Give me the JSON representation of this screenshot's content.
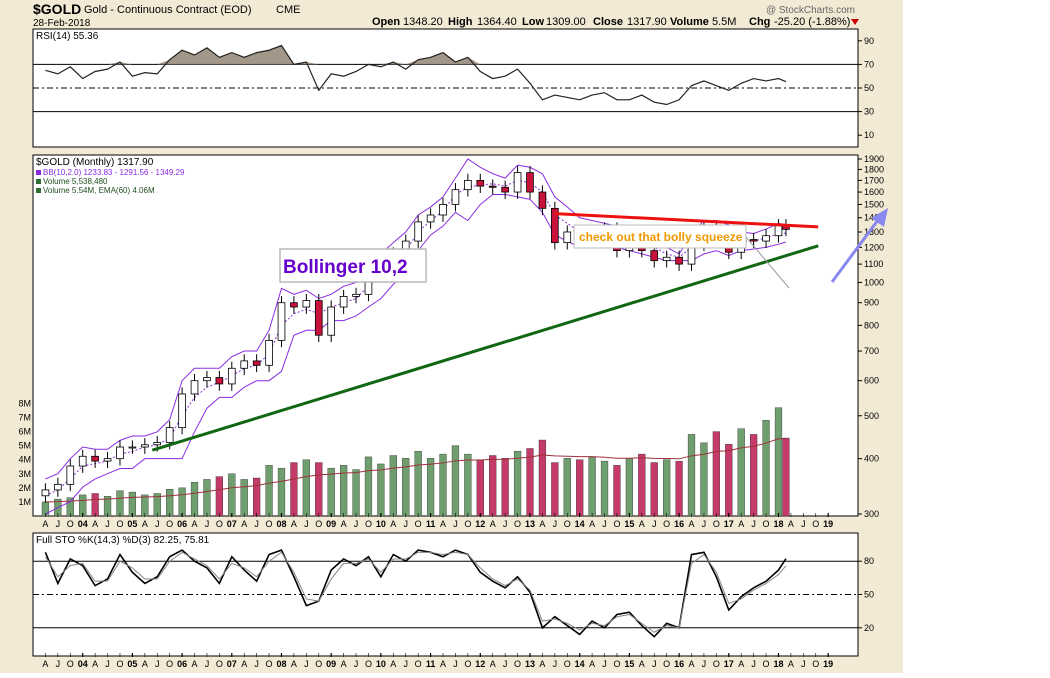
{
  "header": {
    "symbol": "$GOLD",
    "name": "Gold - Continuous Contract (EOD)",
    "exchange": "CME",
    "date": "28-Feb-2018",
    "open_label": "Open",
    "open": "1348.20",
    "high_label": "High",
    "high": "1364.40",
    "low_label": "Low",
    "low": "1309.00",
    "close_label": "Close",
    "close": "1317.90",
    "volume_label": "Volume",
    "volume": "5.5M",
    "chg_label": "Chg",
    "chg": "-25.20 (-1.88%)",
    "watermark": "@ StockCharts.com"
  },
  "colors": {
    "background": "#f2ead5",
    "plot_bg": "#ffffff",
    "up_candle": "#ffffff",
    "down_candle": "#c8123c",
    "bollinger": "#8a2be2",
    "volume_up": "#6f9f6f",
    "volume_down": "#c43a6a",
    "resistance_line": "#ee1111",
    "support_line": "#116611",
    "arrow": "#8888ee",
    "annotation_text": "#ee9900"
  },
  "annotations": {
    "bollinger_label": "Bollinger 10,2",
    "squeeze_label": "check out that bolly squeeze"
  },
  "chart_data": [
    {
      "type": "line",
      "panel": "rsi",
      "label": "RSI(14) 55.36",
      "indicator": "RSI(14)",
      "last_value": 55.36,
      "ylim": [
        0,
        100
      ],
      "y_ticks": [
        10,
        30,
        50,
        70,
        90
      ],
      "reference_lines": [
        30,
        50,
        70
      ],
      "x": [
        2003.25,
        2003.5,
        2003.75,
        2004.0,
        2004.25,
        2004.5,
        2004.75,
        2005.0,
        2005.25,
        2005.5,
        2005.75,
        2006.0,
        2006.25,
        2006.5,
        2006.75,
        2007.0,
        2007.25,
        2007.5,
        2007.75,
        2008.0,
        2008.25,
        2008.5,
        2008.75,
        2009.0,
        2009.25,
        2009.5,
        2009.75,
        2010.0,
        2010.25,
        2010.5,
        2010.75,
        2011.0,
        2011.25,
        2011.5,
        2011.75,
        2012.0,
        2012.25,
        2012.5,
        2012.75,
        2013.0,
        2013.25,
        2013.5,
        2013.75,
        2014.0,
        2014.25,
        2014.5,
        2014.75,
        2015.0,
        2015.25,
        2015.5,
        2015.75,
        2016.0,
        2016.25,
        2016.5,
        2016.75,
        2017.0,
        2017.25,
        2017.5,
        2017.75,
        2018.0,
        2018.15
      ],
      "values": [
        65,
        62,
        68,
        58,
        64,
        66,
        72,
        60,
        63,
        62,
        74,
        82,
        78,
        84,
        76,
        80,
        76,
        80,
        82,
        86,
        70,
        72,
        48,
        62,
        60,
        64,
        70,
        68,
        72,
        66,
        74,
        76,
        80,
        72,
        76,
        64,
        58,
        60,
        66,
        54,
        40,
        44,
        42,
        40,
        44,
        46,
        40,
        40,
        44,
        38,
        36,
        40,
        52,
        56,
        52,
        48,
        54,
        58,
        56,
        58,
        55.36
      ]
    },
    {
      "type": "candlestick",
      "panel": "price",
      "label": "$GOLD (Monthly) 1317.90",
      "series_labels": [
        "BB(10,2.0) 1233.83 - 1291.56 - 1349.29",
        "Volume 5,538,480",
        "Volume 5.54M, EMA(60) 4.06M"
      ],
      "y_scale": "log",
      "ylim": [
        300,
        1900
      ],
      "y_ticks": [
        300,
        400,
        500,
        600,
        700,
        800,
        900,
        1000,
        1100,
        1200,
        1300,
        1400,
        1500,
        1600,
        1700,
        1800,
        1900
      ],
      "x_ticks": [
        "A",
        "J",
        "O",
        "04",
        "A",
        "J",
        "O",
        "05",
        "A",
        "J",
        "O",
        "06",
        "A",
        "J",
        "O",
        "07",
        "A",
        "J",
        "O",
        "08",
        "A",
        "J",
        "O",
        "09",
        "A",
        "J",
        "O",
        "10",
        "A",
        "J",
        "O",
        "11",
        "A",
        "J",
        "O",
        "12",
        "A",
        "J",
        "O",
        "13",
        "A",
        "J",
        "O",
        "14",
        "A",
        "J",
        "O",
        "15",
        "A",
        "J",
        "O",
        "16",
        "A",
        "J",
        "O",
        "17",
        "A",
        "J",
        "O",
        "18",
        "A",
        "J",
        "O",
        "19"
      ],
      "x": [
        2003.25,
        2003.5,
        2003.75,
        2004.0,
        2004.25,
        2004.5,
        2004.75,
        2005.0,
        2005.25,
        2005.5,
        2005.75,
        2006.0,
        2006.25,
        2006.5,
        2006.75,
        2007.0,
        2007.25,
        2007.5,
        2007.75,
        2008.0,
        2008.25,
        2008.5,
        2008.75,
        2009.0,
        2009.25,
        2009.5,
        2009.75,
        2010.0,
        2010.25,
        2010.5,
        2010.75,
        2011.0,
        2011.25,
        2011.5,
        2011.75,
        2012.0,
        2012.25,
        2012.5,
        2012.75,
        2013.0,
        2013.25,
        2013.5,
        2013.75,
        2014.0,
        2014.25,
        2014.5,
        2014.75,
        2015.0,
        2015.25,
        2015.5,
        2015.75,
        2016.0,
        2016.25,
        2016.5,
        2016.75,
        2017.0,
        2017.25,
        2017.5,
        2017.75,
        2018.0,
        2018.15
      ],
      "close": [
        340,
        350,
        385,
        405,
        395,
        400,
        425,
        425,
        430,
        435,
        470,
        560,
        600,
        610,
        590,
        640,
        665,
        650,
        740,
        900,
        880,
        910,
        760,
        880,
        930,
        940,
        1040,
        1100,
        1160,
        1240,
        1370,
        1420,
        1500,
        1620,
        1700,
        1650,
        1640,
        1600,
        1770,
        1600,
        1470,
        1230,
        1300,
        1240,
        1290,
        1320,
        1180,
        1210,
        1180,
        1120,
        1140,
        1100,
        1220,
        1320,
        1260,
        1170,
        1250,
        1240,
        1275,
        1343,
        1317.9
      ],
      "bb_upper": [
        360,
        370,
        400,
        425,
        420,
        420,
        440,
        450,
        450,
        460,
        490,
        600,
        640,
        640,
        640,
        680,
        700,
        700,
        780,
        970,
        940,
        960,
        920,
        940,
        980,
        1000,
        1080,
        1160,
        1230,
        1300,
        1420,
        1480,
        1560,
        1720,
        1900,
        1820,
        1760,
        1720,
        1840,
        1820,
        1760,
        1560,
        1480,
        1400,
        1380,
        1360,
        1340,
        1320,
        1300,
        1260,
        1200,
        1160,
        1280,
        1380,
        1380,
        1350,
        1300,
        1290,
        1320,
        1360,
        1349.29
      ],
      "bb_middle": [
        330,
        340,
        360,
        385,
        390,
        395,
        410,
        415,
        425,
        430,
        445,
        500,
        550,
        580,
        595,
        615,
        640,
        650,
        690,
        800,
        850,
        870,
        850,
        880,
        900,
        920,
        980,
        1040,
        1110,
        1180,
        1300,
        1380,
        1450,
        1580,
        1640,
        1660,
        1670,
        1650,
        1700,
        1680,
        1600,
        1420,
        1360,
        1300,
        1300,
        1300,
        1270,
        1250,
        1230,
        1200,
        1160,
        1140,
        1200,
        1270,
        1280,
        1250,
        1240,
        1240,
        1260,
        1290,
        1291.56
      ],
      "bb_lower": [
        300,
        310,
        320,
        345,
        360,
        370,
        380,
        380,
        400,
        400,
        400,
        400,
        460,
        520,
        550,
        550,
        580,
        600,
        600,
        630,
        760,
        780,
        780,
        820,
        820,
        840,
        880,
        920,
        990,
        1060,
        1180,
        1280,
        1340,
        1440,
        1380,
        1500,
        1580,
        1580,
        1560,
        1540,
        1440,
        1280,
        1240,
        1200,
        1220,
        1240,
        1200,
        1180,
        1160,
        1140,
        1120,
        1120,
        1120,
        1160,
        1180,
        1150,
        1180,
        1190,
        1200,
        1220,
        1233.83
      ],
      "volume_millions": [
        1.0,
        1.2,
        1.3,
        1.5,
        1.6,
        1.4,
        1.8,
        1.7,
        1.5,
        1.6,
        1.9,
        2.0,
        2.4,
        2.6,
        2.8,
        3.0,
        2.6,
        2.7,
        3.6,
        3.4,
        3.8,
        4.0,
        3.8,
        3.4,
        3.6,
        3.3,
        4.2,
        3.7,
        4.3,
        4.1,
        4.6,
        4.1,
        4.4,
        5.0,
        4.4,
        4.0,
        4.3,
        4.1,
        4.6,
        4.8,
        5.4,
        3.8,
        4.1,
        4.0,
        4.2,
        3.9,
        3.6,
        4.1,
        4.4,
        3.8,
        4.0,
        3.9,
        5.8,
        5.2,
        6.0,
        5.1,
        6.2,
        5.8,
        6.8,
        7.7,
        5.54
      ],
      "volume_axis_ticks": [
        "1M",
        "2M",
        "3M",
        "4M",
        "5M",
        "6M",
        "7M",
        "8M"
      ],
      "trendlines": [
        {
          "name": "resistance",
          "from": [
            2013.5,
            1430
          ],
          "to": [
            2018.8,
            1335
          ]
        },
        {
          "name": "support",
          "from": [
            2005.4,
            418
          ],
          "to": [
            2018.8,
            1210
          ]
        }
      ]
    },
    {
      "type": "line",
      "panel": "stochastic",
      "label": "Full STO %K(14,3) %D(3) 82.25, 75.81",
      "indicator": "Full STO %K(14,3) %D(3)",
      "last_values": [
        82.25,
        75.81
      ],
      "ylim": [
        0,
        100
      ],
      "y_ticks": [
        20,
        50,
        80
      ],
      "reference_lines": [
        20,
        50,
        80
      ],
      "x": [
        2003.25,
        2003.5,
        2003.75,
        2004.0,
        2004.25,
        2004.5,
        2004.75,
        2005.0,
        2005.25,
        2005.5,
        2005.75,
        2006.0,
        2006.25,
        2006.5,
        2006.75,
        2007.0,
        2007.25,
        2007.5,
        2007.75,
        2008.0,
        2008.25,
        2008.5,
        2008.75,
        2009.0,
        2009.25,
        2009.5,
        2009.75,
        2010.0,
        2010.25,
        2010.5,
        2010.75,
        2011.0,
        2011.25,
        2011.5,
        2011.75,
        2012.0,
        2012.25,
        2012.5,
        2012.75,
        2013.0,
        2013.25,
        2013.5,
        2013.75,
        2014.0,
        2014.25,
        2014.5,
        2014.75,
        2015.0,
        2015.25,
        2015.5,
        2015.75,
        2016.0,
        2016.25,
        2016.5,
        2016.75,
        2017.0,
        2017.25,
        2017.5,
        2017.75,
        2018.0,
        2018.15
      ],
      "series": [
        {
          "values": [
            88,
            60,
            82,
            76,
            58,
            64,
            86,
            70,
            60,
            66,
            84,
            90,
            80,
            74,
            60,
            84,
            72,
            62,
            86,
            90,
            66,
            40,
            44,
            72,
            82,
            76,
            84,
            66,
            86,
            80,
            90,
            88,
            84,
            90,
            86,
            70,
            62,
            56,
            66,
            52,
            20,
            30,
            22,
            14,
            26,
            20,
            32,
            34,
            22,
            12,
            24,
            20,
            86,
            88,
            66,
            36,
            48,
            56,
            62,
            72,
            82.25
          ]
        },
        {
          "values": [
            84,
            66,
            76,
            78,
            62,
            62,
            80,
            74,
            64,
            64,
            80,
            88,
            82,
            76,
            64,
            78,
            74,
            66,
            80,
            88,
            70,
            46,
            44,
            64,
            78,
            78,
            82,
            70,
            82,
            82,
            88,
            88,
            86,
            88,
            86,
            74,
            64,
            58,
            64,
            54,
            26,
            28,
            24,
            18,
            24,
            22,
            30,
            32,
            24,
            16,
            22,
            20,
            78,
            86,
            70,
            42,
            46,
            54,
            60,
            68,
            75.81
          ]
        }
      ]
    }
  ]
}
